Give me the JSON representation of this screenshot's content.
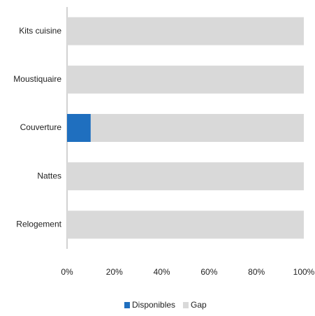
{
  "chart_data": {
    "type": "bar",
    "orientation": "horizontal",
    "stacked": true,
    "categories": [
      "Kits cuisine",
      "Moustiquaire",
      "Couverture",
      "Nattes",
      "Relogement"
    ],
    "series": [
      {
        "name": "Disponibles",
        "color": "#1f6fbf",
        "values": [
          0,
          0,
          10,
          0,
          0
        ]
      },
      {
        "name": "Gap",
        "color": "#d9d9d9",
        "values": [
          100,
          100,
          90,
          100,
          100
        ]
      }
    ],
    "x_ticks": [
      "0%",
      "20%",
      "40%",
      "60%",
      "80%",
      "100%"
    ],
    "xlim": [
      0,
      100
    ],
    "grid": false,
    "legend_position": "bottom"
  }
}
